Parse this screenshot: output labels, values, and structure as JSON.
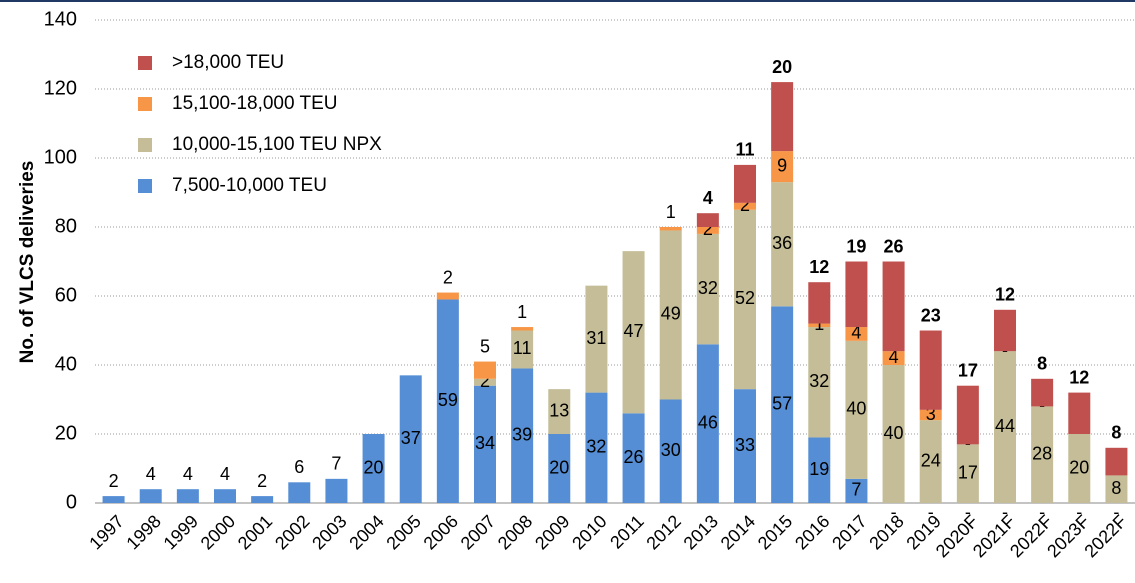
{
  "chart_data": {
    "type": "stacked_bar",
    "y_label": "No. of VLCS deliveries",
    "categories": [
      "1997",
      "1998",
      "1999",
      "2000",
      "2001",
      "2002",
      "2003",
      "2004",
      "2005",
      "2006",
      "2007",
      "2008",
      "2009",
      "2010",
      "2011",
      "2012",
      "2013",
      "2014",
      "2015",
      "2016",
      "2017",
      "2018",
      "2019",
      "2020F",
      "2021F",
      "2022F",
      "2023F",
      "2022F"
    ],
    "series": [
      {
        "name": "7,500-10,000 TEU",
        "color": "#558ed5",
        "values": [
          2,
          4,
          4,
          4,
          2,
          6,
          7,
          20,
          37,
          59,
          34,
          39,
          20,
          32,
          26,
          30,
          46,
          33,
          57,
          19,
          7,
          0,
          0,
          0,
          0,
          0,
          0,
          0
        ],
        "value_labels": [
          null,
          null,
          null,
          null,
          null,
          null,
          null,
          null,
          null,
          null,
          null,
          null,
          null,
          null,
          null,
          null,
          null,
          null,
          null,
          null,
          null,
          "-",
          "-",
          "-",
          "-",
          "-",
          "-",
          "-"
        ]
      },
      {
        "name": "10,000-15,100 TEU NPX",
        "color": "#c4bd97",
        "values": [
          null,
          null,
          null,
          null,
          null,
          null,
          null,
          null,
          null,
          null,
          2,
          11,
          13,
          31,
          47,
          49,
          32,
          52,
          36,
          32,
          40,
          40,
          24,
          17,
          44,
          28,
          20,
          8
        ]
      },
      {
        "name": "15,100-18,000 TEU",
        "color": "#f79646",
        "values": [
          null,
          null,
          null,
          null,
          null,
          null,
          null,
          null,
          null,
          2,
          5,
          1,
          null,
          null,
          null,
          1,
          2,
          2,
          9,
          1,
          4,
          4,
          3,
          0,
          0,
          0,
          null,
          null
        ],
        "value_labels": [
          null,
          null,
          null,
          null,
          null,
          null,
          null,
          null,
          null,
          null,
          null,
          null,
          null,
          null,
          null,
          null,
          null,
          null,
          null,
          null,
          null,
          null,
          null,
          "-",
          "-",
          "-",
          null,
          null
        ]
      },
      {
        "name": ">18,000 TEU",
        "color": "#c0504d",
        "values": [
          null,
          null,
          null,
          null,
          null,
          null,
          null,
          null,
          null,
          null,
          null,
          null,
          null,
          null,
          null,
          null,
          4,
          11,
          20,
          12,
          19,
          26,
          23,
          17,
          12,
          8,
          12,
          8
        ]
      }
    ],
    "ylim": [
      0,
      140
    ],
    "yticks": [
      0,
      20,
      40,
      60,
      80,
      100,
      120,
      140
    ],
    "grid": true,
    "legend": "upper left"
  }
}
